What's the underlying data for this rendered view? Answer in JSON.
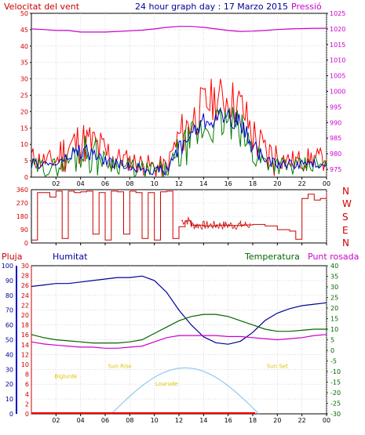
{
  "header": {
    "wind_label": "Velocitat del vent",
    "title": "24 hour graph day : 17 Marzo 2015",
    "pressure_label": "Pressió"
  },
  "bottom_header": {
    "rain_label": "Pluja",
    "humidity_label": "Humitat",
    "temperature_label": "Temperatura",
    "dewpoint_label": "Punt rosada"
  },
  "direction_labels": [
    "N",
    "W",
    "S",
    "E",
    "N"
  ],
  "colors": {
    "wind": "#ff0000",
    "gust": "#ff0000",
    "wind_avg": "#008000",
    "wind_avg2": "#0000cc",
    "pressure": "#cc00cc",
    "direction": "#cc0000",
    "humidity": "#000099",
    "temperature": "#006600",
    "dewpoint": "#cc00cc",
    "sun": "#99ccee",
    "rain": "#ff0000",
    "sun_text": "#e0c000",
    "grid": "#c0c0c0"
  },
  "chart_data": [
    {
      "type": "line",
      "title": "24 hour graph day : 17 Marzo 2015",
      "xlabel": "",
      "x_ticks": [
        "02",
        "04",
        "06",
        "08",
        "10",
        "12",
        "14",
        "16",
        "18",
        "20",
        "22",
        "00"
      ],
      "left_axis": {
        "label": "Velocitat del vent",
        "ticks": [
          0,
          5,
          10,
          15,
          20,
          25,
          30,
          35,
          40,
          45,
          50
        ],
        "ylim": [
          0,
          50
        ]
      },
      "right_axis": {
        "label": "Pressió",
        "ticks": [
          975,
          980,
          985,
          990,
          995,
          1000,
          1005,
          1010,
          1015,
          1020,
          1025
        ],
        "ylim": [
          972.5,
          1025
        ]
      },
      "x_hours": [
        0,
        1,
        2,
        3,
        4,
        5,
        6,
        7,
        8,
        9,
        10,
        11,
        12,
        13,
        14,
        15,
        16,
        17,
        18,
        19,
        20,
        21,
        22,
        23,
        24
      ],
      "series": [
        {
          "name": "gust",
          "values": [
            6,
            5,
            5,
            9,
            11,
            10,
            7,
            6,
            5,
            4,
            3,
            3,
            12,
            17,
            22,
            24,
            24,
            22,
            13,
            7,
            6,
            5,
            5,
            6,
            5
          ]
        },
        {
          "name": "wind",
          "values": [
            3,
            3,
            3,
            5,
            8,
            7,
            5,
            4,
            3,
            2,
            2,
            2,
            7,
            11,
            15,
            16,
            17,
            14,
            8,
            5,
            4,
            3,
            3,
            4,
            3
          ]
        },
        {
          "name": "avg",
          "values": [
            4,
            4,
            4,
            6,
            8,
            7,
            5,
            4,
            3,
            3,
            2,
            2,
            9,
            13,
            17,
            18,
            19,
            16,
            10,
            5,
            4,
            4,
            4,
            4,
            4
          ]
        },
        {
          "name": "Pressió",
          "values": [
            1020,
            1019.8,
            1019.5,
            1019.5,
            1019,
            1019,
            1019,
            1019.2,
            1019.4,
            1019.6,
            1020,
            1020.5,
            1020.8,
            1020.8,
            1020.5,
            1020,
            1019.5,
            1019.2,
            1019.3,
            1019.5,
            1019.8,
            1020,
            1020.1,
            1020.2,
            1020.2
          ]
        }
      ],
      "grid": true
    },
    {
      "type": "line",
      "title": "",
      "x_ticks": [
        "02",
        "04",
        "06",
        "08",
        "10",
        "12",
        "14",
        "16",
        "18",
        "20",
        "22",
        "00"
      ],
      "left_axis": {
        "ticks": [
          0,
          90,
          180,
          270,
          360
        ],
        "ylim": [
          0,
          360
        ]
      },
      "right_axis_labels": [
        "N",
        "W",
        "S",
        "E",
        "N"
      ],
      "x_hours": [
        0,
        0.5,
        1,
        1.5,
        2,
        2.5,
        3,
        3.5,
        4,
        4.5,
        5,
        5.5,
        6,
        6.5,
        7,
        7.5,
        8,
        8.5,
        9,
        9.5,
        10,
        10.5,
        11,
        11.5,
        12,
        12.5,
        13,
        14,
        15,
        16,
        17,
        18,
        19,
        20,
        21,
        21.5,
        22,
        22.5,
        23,
        23.5,
        24
      ],
      "series": [
        {
          "name": "direction",
          "values": [
            20,
            340,
            340,
            310,
            350,
            30,
            350,
            340,
            345,
            350,
            60,
            340,
            20,
            350,
            345,
            60,
            350,
            340,
            30,
            340,
            20,
            345,
            350,
            30,
            110,
            150,
            120,
            115,
            120,
            118,
            122,
            125,
            115,
            90,
            80,
            25,
            300,
            330,
            290,
            300,
            340
          ]
        }
      ],
      "grid": true
    },
    {
      "type": "line",
      "title": "",
      "x_ticks": [
        "02",
        "04",
        "06",
        "08",
        "10",
        "12",
        "14",
        "16",
        "18",
        "20",
        "22",
        "00"
      ],
      "humidity_axis": {
        "label": "Humitat",
        "ticks": [
          0,
          10,
          20,
          30,
          40,
          50,
          60,
          70,
          80,
          90,
          100
        ],
        "ylim": [
          0,
          100
        ]
      },
      "rain_axis": {
        "label": "Pluja",
        "ticks": [
          0,
          2,
          4,
          6,
          8,
          10,
          12,
          14,
          16,
          18,
          20,
          22,
          24,
          26,
          28,
          30
        ],
        "ylim": [
          0,
          30
        ]
      },
      "temperature_axis": {
        "label": "Temperatura",
        "ticks": [
          -30,
          -25,
          -20,
          -15,
          -10,
          -5,
          0,
          5,
          10,
          15,
          20,
          25,
          30,
          35,
          40
        ],
        "ylim": [
          -30,
          40
        ]
      },
      "x_hours": [
        0,
        1,
        2,
        3,
        4,
        5,
        6,
        7,
        8,
        9,
        10,
        11,
        12,
        13,
        14,
        15,
        16,
        17,
        18,
        19,
        20,
        21,
        22,
        23,
        24
      ],
      "series": [
        {
          "name": "Humitat",
          "values": [
            86,
            87,
            88,
            88,
            89,
            90,
            91,
            92,
            92,
            93,
            90,
            82,
            70,
            60,
            52,
            48,
            47,
            49,
            55,
            63,
            68,
            71,
            73,
            74,
            75
          ]
        },
        {
          "name": "Temperatura",
          "values": [
            7.5,
            6,
            5,
            4.5,
            4,
            3.5,
            3.5,
            3.5,
            4,
            5,
            8,
            11,
            14,
            16,
            17,
            17,
            16,
            14,
            12,
            10,
            9,
            9,
            9.5,
            10,
            10
          ]
        },
        {
          "name": "Punt rosada",
          "values": [
            4,
            3,
            2.5,
            2,
            1.5,
            1.5,
            1,
            1,
            1.5,
            2,
            4,
            6,
            7,
            7,
            7,
            7,
            6.5,
            6.5,
            6,
            5.5,
            5,
            5.5,
            6,
            7,
            7.5
          ]
        },
        {
          "name": "rain",
          "values": [
            0,
            0,
            0,
            0,
            0,
            0,
            0,
            0,
            0,
            0,
            0,
            0,
            0,
            0,
            0,
            0,
            0,
            0,
            0,
            0,
            0,
            0,
            0,
            0,
            0
          ]
        }
      ],
      "sun_curve": {
        "rise_hour": 6.5,
        "set_hour": 18.5,
        "peak_hour": 12.5,
        "peak_value": 31
      },
      "annotations": [
        {
          "text": "Sun Rise",
          "hour": 7.2,
          "value": 31
        },
        {
          "text": "Biglurde",
          "hour": 2.8,
          "value": 24
        },
        {
          "text": "Lourude",
          "hour": 11,
          "value": 19
        },
        {
          "text": "Sun Set",
          "hour": 20,
          "value": 31
        }
      ],
      "grid": true
    }
  ]
}
